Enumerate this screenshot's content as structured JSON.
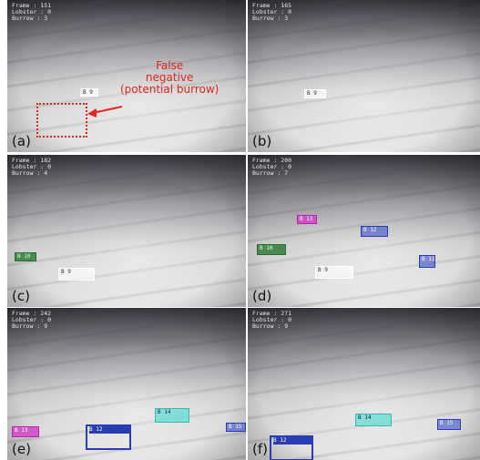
{
  "panels": [
    {
      "label": "(a)",
      "info": [
        "Frame : 151",
        "Lobster : 0",
        "Burrow : 3"
      ],
      "boxes": [
        "B 9"
      ]
    },
    {
      "label": "(b)",
      "info": [
        "Frame : 165",
        "Lobster : 0",
        "Burrow : 3"
      ],
      "boxes": [
        "B 9"
      ]
    },
    {
      "label": "(c)",
      "info": [
        "Frame : 182",
        "Lobster : 0",
        "Burrow : 4"
      ],
      "boxes": [
        "B 10",
        "B 9"
      ]
    },
    {
      "label": "(d)",
      "info": [
        "Frame : 200",
        "Lobster : 0",
        "Burrow : 7"
      ],
      "boxes": [
        "B 13",
        "B 12",
        "B 10",
        "B 9",
        "B 11"
      ]
    },
    {
      "label": "(e)",
      "info": [
        "Frame : 242",
        "Lobster : 0",
        "Burrow : 9"
      ],
      "boxes": [
        "B 13",
        "B 12",
        "B 14",
        "B 15"
      ]
    },
    {
      "label": "(f)",
      "info": [
        "Frame : 271",
        "Lobster : 0",
        "Burrow : 9"
      ],
      "boxes": [
        "B 14",
        "B 15",
        "B 12"
      ]
    }
  ],
  "annotation": {
    "lines": [
      "False",
      "negative",
      "(potential burrow)"
    ]
  }
}
